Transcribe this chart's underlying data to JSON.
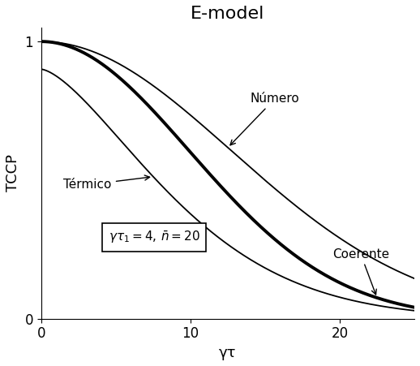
{
  "title": "E-model",
  "xlabel": "γτ",
  "ylabel": "TCCP",
  "xlim": [
    0,
    25
  ],
  "ylim": [
    0,
    1.05
  ],
  "xticks": [
    0,
    10,
    20
  ],
  "yticks": [
    0,
    1
  ],
  "gamma_tau1": 4,
  "n_bar": 20,
  "label_numero": "Número",
  "label_coerente": "Coerente",
  "label_termico": "Térmico",
  "background_color": "#ffffff",
  "line_color": "#000000",
  "lw_thin": 1.3,
  "lw_thick": 2.8,
  "fontsize_title": 16,
  "fontsize_labels": 13,
  "fontsize_annot": 11
}
